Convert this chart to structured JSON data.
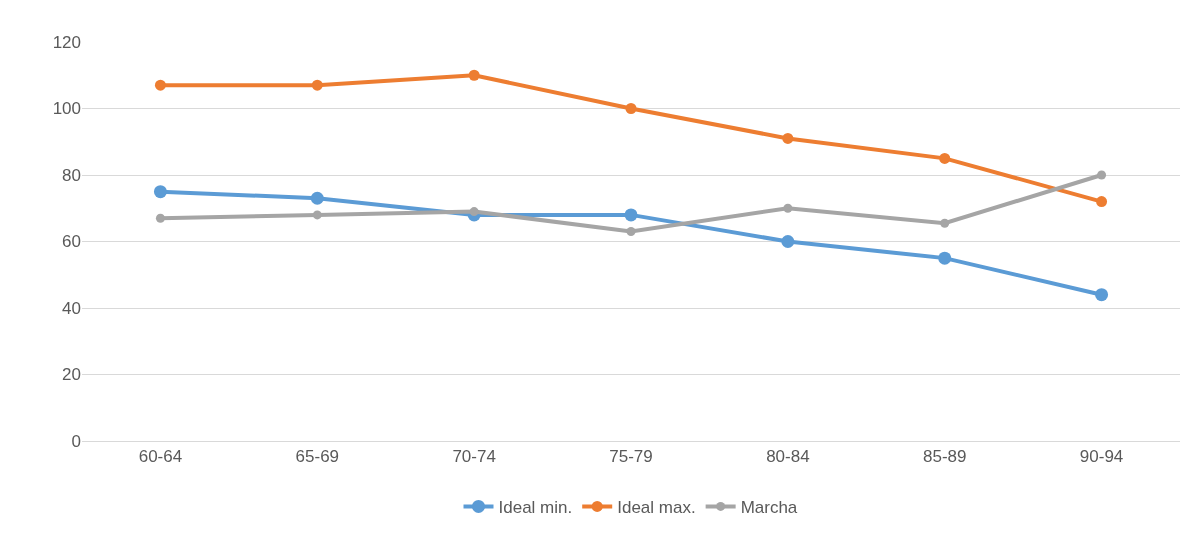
{
  "chart_data": {
    "type": "line",
    "categories": [
      "60-64",
      "65-69",
      "70-74",
      "75-79",
      "80-84",
      "85-89",
      "90-94"
    ],
    "series": [
      {
        "name": "Ideal min.",
        "color": "#5b9bd5",
        "values": [
          75,
          73,
          68,
          68,
          60,
          55,
          44
        ]
      },
      {
        "name": "Ideal max.",
        "color": "#ed7d31",
        "values": [
          107,
          107,
          110,
          100,
          91,
          85,
          72
        ]
      },
      {
        "name": "Marcha",
        "color": "#a5a5a5",
        "values": [
          67,
          68,
          69,
          63,
          70,
          65.5,
          80
        ]
      }
    ],
    "ylim": [
      0,
      120
    ],
    "yticks": [
      0,
      20,
      40,
      60,
      80,
      100,
      120
    ],
    "grid": "y",
    "legend": "bottom",
    "marker": "circle",
    "line_style": "solid"
  }
}
